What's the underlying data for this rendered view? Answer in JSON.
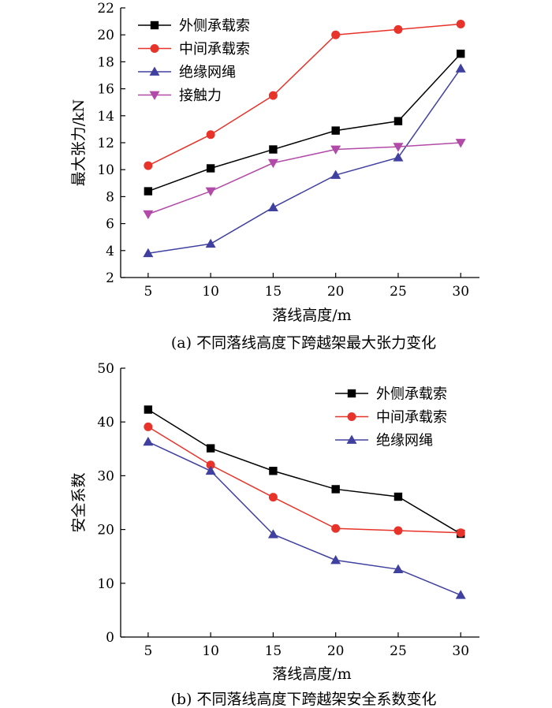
{
  "chart_data": [
    {
      "type": "line",
      "caption": "(a)  不同落线高度下跨越架最大张力变化",
      "xlabel": "落线高度/m",
      "ylabel": "最大张力/kN",
      "x": [
        5,
        10,
        15,
        20,
        25,
        30
      ],
      "xlim": [
        2.8,
        31.5
      ],
      "ylim": [
        2,
        22
      ],
      "yticks": [
        2,
        4,
        6,
        8,
        10,
        12,
        14,
        16,
        18,
        20,
        22
      ],
      "grid": false,
      "legend_position": "top-left",
      "series": [
        {
          "name": "外侧承载索",
          "color": "#000000",
          "marker": "square",
          "values": [
            8.4,
            10.1,
            11.5,
            12.9,
            13.6,
            18.6
          ]
        },
        {
          "name": "中间承载索",
          "color": "#e8332a",
          "marker": "circle",
          "values": [
            10.3,
            12.6,
            15.5,
            20.0,
            20.4,
            20.8
          ]
        },
        {
          "name": "绝缘网绳",
          "color": "#4040a0",
          "marker": "triangle-up",
          "values": [
            3.8,
            4.5,
            7.2,
            9.6,
            10.9,
            17.5
          ]
        },
        {
          "name": "接触力",
          "color": "#b24aa8",
          "marker": "triangle-down",
          "values": [
            6.7,
            8.4,
            10.5,
            11.5,
            11.7,
            12.0
          ]
        }
      ]
    },
    {
      "type": "line",
      "caption": "(b)  不同落线高度下跨越架安全系数变化",
      "xlabel": "落线高度/m",
      "ylabel": "安全系数",
      "x": [
        5,
        10,
        15,
        20,
        25,
        30
      ],
      "xlim": [
        2.8,
        31.5
      ],
      "ylim": [
        0,
        50
      ],
      "yticks": [
        0,
        10,
        20,
        30,
        40,
        50
      ],
      "grid": false,
      "legend_position": "top-right",
      "series": [
        {
          "name": "外侧承载索",
          "color": "#000000",
          "marker": "square",
          "values": [
            42.3,
            35.1,
            30.9,
            27.5,
            26.1,
            19.2
          ]
        },
        {
          "name": "中间承载索",
          "color": "#e8332a",
          "marker": "circle",
          "values": [
            39.1,
            32.0,
            26.0,
            20.2,
            19.8,
            19.4
          ]
        },
        {
          "name": "绝缘网绳",
          "color": "#4040a0",
          "marker": "triangle-up",
          "values": [
            36.3,
            30.9,
            19.1,
            14.3,
            12.6,
            7.8
          ]
        }
      ]
    }
  ]
}
